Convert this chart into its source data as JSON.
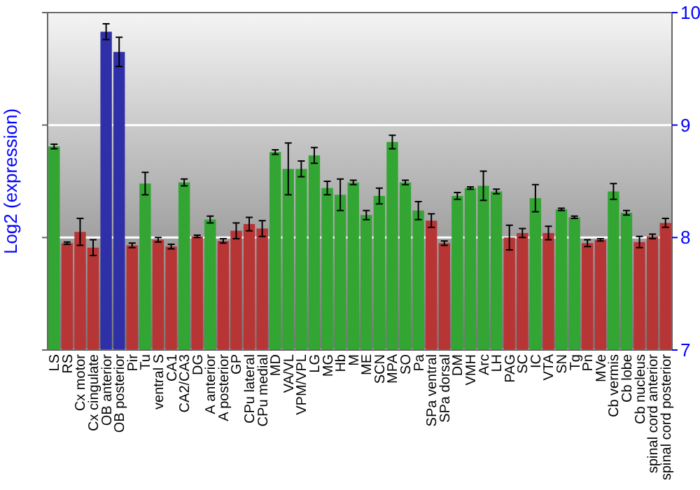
{
  "chart_data": {
    "type": "bar",
    "ylabel": "Log2 (expression)",
    "categories": [
      "LS",
      "RS",
      "Cx motor",
      "Cx cingulate",
      "OB anterior",
      "OB posterior",
      "Pir",
      "Tu",
      "ventral S",
      "CA1",
      "CA2/CA3",
      "DG",
      "A anterior",
      "A posterior",
      "GP",
      "CPu lateral",
      "CPu medial",
      "MD",
      "VA/VL",
      "VPM/VPL",
      "LG",
      "MG",
      "Hb",
      "M",
      "ME",
      "SCN",
      "MPA",
      "SO",
      "Pa",
      "SPa ventral",
      "SPa dorsal",
      "DM",
      "VMH",
      "Arc",
      "LH",
      "PAG",
      "SC",
      "IC",
      "VTA",
      "SN",
      "Tg",
      "Pn",
      "MVe",
      "Cb vermis",
      "Cb lobe",
      "Cb nucleus",
      "spinal cord anterior",
      "spinal cord posterior"
    ],
    "values": [
      8.81,
      7.95,
      8.05,
      7.91,
      9.83,
      9.65,
      7.93,
      8.48,
      7.98,
      7.92,
      8.49,
      8.01,
      8.16,
      7.97,
      8.06,
      8.12,
      8.08,
      8.76,
      8.61,
      8.61,
      8.73,
      8.44,
      8.38,
      8.49,
      8.2,
      8.37,
      8.85,
      8.49,
      8.24,
      8.15,
      7.95,
      8.37,
      8.44,
      8.46,
      8.41,
      8.0,
      8.04,
      8.35,
      8.04,
      8.25,
      8.18,
      7.95,
      7.98,
      8.41,
      8.22,
      7.96,
      8.01,
      8.13
    ],
    "errors": [
      0.02,
      0.01,
      0.12,
      0.07,
      0.07,
      0.13,
      0.02,
      0.1,
      0.02,
      0.02,
      0.03,
      0.01,
      0.03,
      0.02,
      0.07,
      0.06,
      0.07,
      0.02,
      0.23,
      0.07,
      0.07,
      0.06,
      0.14,
      0.02,
      0.04,
      0.07,
      0.06,
      0.02,
      0.08,
      0.06,
      0.02,
      0.03,
      0.01,
      0.13,
      0.02,
      0.11,
      0.04,
      0.12,
      0.06,
      0.01,
      0.01,
      0.03,
      0.01,
      0.07,
      0.02,
      0.05,
      0.02,
      0.04
    ],
    "colors": [
      "#33a533",
      "#b83535",
      "#b83535",
      "#b83535",
      "#2f2fa8",
      "#2f2fa8",
      "#b83535",
      "#33a533",
      "#b83535",
      "#b83535",
      "#33a533",
      "#b83535",
      "#33a533",
      "#b83535",
      "#b83535",
      "#b83535",
      "#b83535",
      "#33a533",
      "#33a533",
      "#33a533",
      "#33a533",
      "#33a533",
      "#33a533",
      "#33a533",
      "#33a533",
      "#33a533",
      "#33a533",
      "#33a533",
      "#33a533",
      "#b83535",
      "#b83535",
      "#33a533",
      "#33a533",
      "#33a533",
      "#33a533",
      "#b83535",
      "#b83535",
      "#33a533",
      "#b83535",
      "#33a533",
      "#33a533",
      "#b83535",
      "#b83535",
      "#33a533",
      "#33a533",
      "#b83535",
      "#b83535",
      "#b83535"
    ],
    "ylim": [
      7,
      10
    ],
    "yticks": [
      7,
      8,
      9,
      10
    ],
    "grid": "y"
  }
}
